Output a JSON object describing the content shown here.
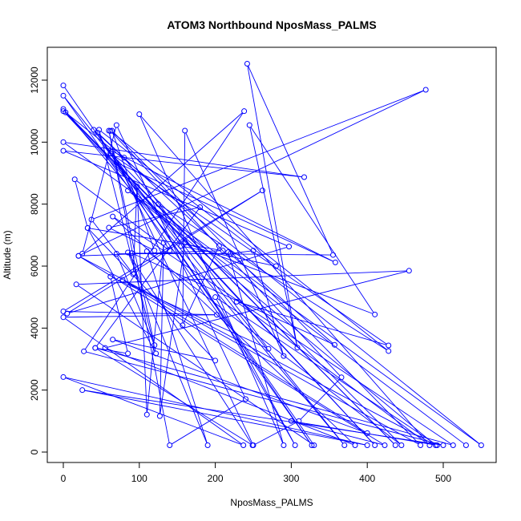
{
  "chart_data": {
    "type": "scatter",
    "title": "ATOM3 Northbound NposMass_PALMS",
    "xlabel": "NposMass_PALMS",
    "ylabel": "Altitude (m)",
    "xlim": [
      0,
      550
    ],
    "ylim": [
      0,
      12500
    ],
    "x_ticks": [
      0,
      100,
      200,
      300,
      400,
      500
    ],
    "y_ticks": [
      0,
      2000,
      4000,
      6000,
      8000,
      10000,
      12000
    ],
    "x_tick_labels": [
      "0",
      "100",
      "200",
      "300",
      "400",
      "500"
    ],
    "y_tick_labels": [
      "0",
      "2000",
      "4000",
      "6000",
      "8000",
      "10000",
      "12000"
    ],
    "grid": false,
    "legend": false,
    "connected": true,
    "color": "#0000ff",
    "points": [
      [
        0,
        11830
      ],
      [
        327,
        220
      ],
      [
        0,
        11500
      ],
      [
        370,
        220
      ],
      [
        0,
        11070
      ],
      [
        410,
        220
      ],
      [
        0,
        11000
      ],
      [
        437,
        220
      ],
      [
        3,
        10960
      ],
      [
        550,
        220
      ],
      [
        0,
        10000
      ],
      [
        317,
        8870
      ],
      [
        0,
        9720
      ],
      [
        297,
        6630
      ],
      [
        5,
        4470
      ],
      [
        262,
        8440
      ],
      [
        0,
        4540
      ],
      [
        202,
        4430
      ],
      [
        0,
        4350
      ],
      [
        237,
        220
      ],
      [
        0,
        2420
      ],
      [
        400,
        220
      ],
      [
        25,
        2000
      ],
      [
        500,
        220
      ],
      [
        27,
        3250
      ],
      [
        238,
        11000
      ],
      [
        25,
        6400
      ],
      [
        70,
        10550
      ],
      [
        240,
        1710
      ],
      [
        140,
        220
      ],
      [
        60,
        10370
      ],
      [
        120,
        3450
      ],
      [
        70,
        6400
      ],
      [
        220,
        6400
      ],
      [
        250,
        6500
      ],
      [
        290,
        3100
      ],
      [
        160,
        10370
      ],
      [
        157,
        4090
      ],
      [
        205,
        6650
      ],
      [
        40,
        10400
      ],
      [
        155,
        6650
      ],
      [
        280,
        6000
      ],
      [
        47,
        10400
      ],
      [
        122,
        3180
      ],
      [
        32,
        7230
      ],
      [
        15,
        8800
      ],
      [
        140,
        6500
      ],
      [
        45,
        10310
      ],
      [
        80,
        9500
      ],
      [
        270,
        3330
      ],
      [
        62,
        5660
      ],
      [
        85,
        3180
      ],
      [
        42,
        3360
      ],
      [
        180,
        7900
      ],
      [
        60,
        7240
      ],
      [
        120,
        6500
      ],
      [
        64,
        10370
      ],
      [
        470,
        220
      ],
      [
        78,
        5560
      ],
      [
        400,
        610
      ],
      [
        65,
        3630
      ],
      [
        200,
        2950
      ],
      [
        32,
        7230
      ],
      [
        210,
        6500
      ],
      [
        20,
        6330
      ],
      [
        477,
        11690
      ],
      [
        37,
        7500
      ],
      [
        92,
        5740
      ],
      [
        97,
        8570
      ],
      [
        110,
        1210
      ],
      [
        132,
        6750
      ],
      [
        127,
        1160
      ],
      [
        160,
        6750
      ],
      [
        410,
        4440
      ],
      [
        245,
        10550
      ],
      [
        308,
        3370
      ],
      [
        242,
        12530
      ],
      [
        355,
        6360
      ],
      [
        90,
        6420
      ],
      [
        357,
        3460
      ],
      [
        217,
        6450
      ],
      [
        290,
        220
      ],
      [
        100,
        10900
      ],
      [
        482,
        220
      ],
      [
        228,
        4850
      ],
      [
        428,
        3440
      ],
      [
        62,
        9640
      ],
      [
        445,
        220
      ],
      [
        110,
        6480
      ],
      [
        190,
        220
      ],
      [
        85,
        6440
      ],
      [
        249,
        220
      ],
      [
        42,
        3360
      ],
      [
        513,
        220
      ],
      [
        65,
        7600
      ],
      [
        384,
        220
      ],
      [
        55,
        3360
      ],
      [
        455,
        5850
      ],
      [
        17,
        5410
      ],
      [
        330,
        220
      ],
      [
        70,
        9340
      ],
      [
        358,
        6120
      ],
      [
        65,
        9700
      ],
      [
        250,
        220
      ],
      [
        310,
        1000
      ],
      [
        366,
        2410
      ],
      [
        62,
        10360
      ],
      [
        428,
        3260
      ],
      [
        125,
        8000
      ],
      [
        305,
        220
      ],
      [
        200,
        5000
      ],
      [
        492,
        220
      ],
      [
        300,
        1000
      ],
      [
        423,
        220
      ],
      [
        20,
        6330
      ],
      [
        490,
        220
      ],
      [
        85,
        8440
      ],
      [
        530,
        220
      ]
    ]
  }
}
